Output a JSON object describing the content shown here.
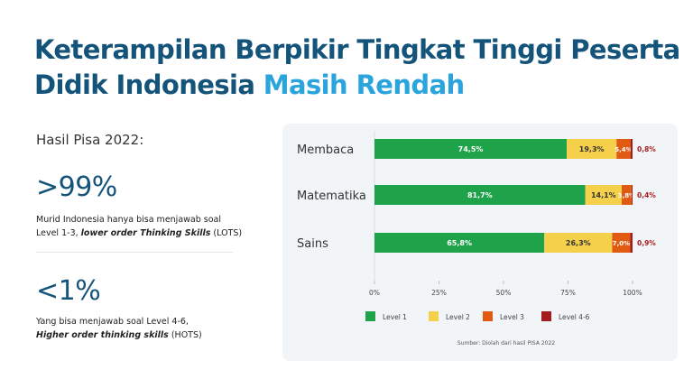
{
  "title": {
    "line1": "Keterampilan Berpikir Tingkat Tinggi Peserta",
    "line2_dark": "Didik Indonesia ",
    "line2_highlight": "Masih Rendah"
  },
  "left": {
    "subheading": "Hasil Pisa 2022:",
    "stat1": {
      "value": ">99%",
      "desc_line1": "Murid Indonesia hanya  bisa menjawab  soal",
      "desc_line2_prefix": "Level 1-3, ",
      "desc_line2_emph": "lower order Thinking Skills",
      "desc_line2_suffix": " (LOTS)"
    },
    "stat2": {
      "value": "<1%",
      "desc_line1": "Yang bisa menjawab  soal Level 4-6,",
      "desc_line2_emph": "Higher order thinking skills",
      "desc_line2_suffix": " (HOTS)"
    }
  },
  "colors": {
    "level1": "#1fa34a",
    "level2": "#f5d04a",
    "level3": "#e05a12",
    "level46": "#a61c1c",
    "title_dark": "#14547a",
    "title_highlight": "#2aa4dc"
  },
  "chart_data": {
    "type": "bar",
    "orientation": "horizontal",
    "stacked": true,
    "categories": [
      "Membaca",
      "Matematika",
      "Sains"
    ],
    "series": [
      {
        "name": "Level 1",
        "values": [
          74.5,
          81.7,
          65.8
        ],
        "labels": [
          "74,5%",
          "81,7%",
          "65,8%"
        ]
      },
      {
        "name": "Level 2",
        "values": [
          19.3,
          14.1,
          26.3
        ],
        "labels": [
          "19,3%",
          "14,1%",
          "26,3%"
        ]
      },
      {
        "name": "Level 3",
        "values": [
          5.4,
          3.8,
          7.0
        ],
        "labels": [
          "5,4%",
          "3,8%",
          "7,0%"
        ]
      },
      {
        "name": "Level 4-6",
        "values": [
          0.8,
          0.4,
          0.9
        ],
        "labels": [
          "0,8%",
          "0,4%",
          "0,9%"
        ]
      }
    ],
    "xlim": [
      0,
      100
    ],
    "xticks": [
      "0%",
      "25%",
      "50%",
      "75%",
      "100%"
    ],
    "legend_position": "bottom",
    "source": "Sumber:  Diolah dari hasil  PISA  2022"
  }
}
